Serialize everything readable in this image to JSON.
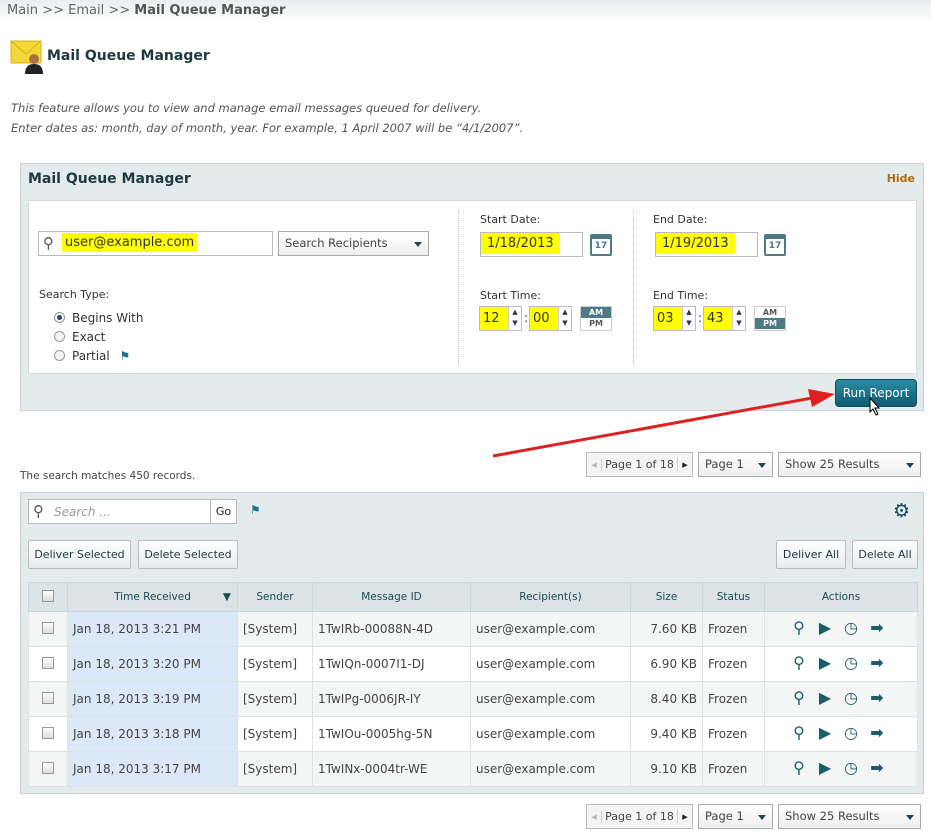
{
  "breadcrumb": {
    "items": [
      "Main",
      ">>",
      "Email",
      ">>"
    ],
    "current": "Mail Queue Manager"
  },
  "page": {
    "title": "Mail Queue Manager",
    "desc1": "This feature allows you to view and manage email messages queued for delivery.",
    "desc2": "Enter dates as: month, day of month, year. For example, 1 April 2007 will be “4/1/2007”."
  },
  "filter": {
    "title": "Mail Queue Manager",
    "hide": "Hide",
    "search_value": "user@example.com",
    "search_field": "Search Recipients",
    "search_type_label": "Search Type:",
    "search_types": [
      "Begins With",
      "Exact",
      "Partial"
    ],
    "search_type_selected": "Begins With",
    "start_date_label": "Start Date:",
    "start_date": "1/18/2013",
    "end_date_label": "End Date:",
    "end_date": "1/19/2013",
    "calendar_day": "17",
    "start_time_label": "Start Time:",
    "start_hour": "12",
    "start_min": "00",
    "start_ampm": "AM",
    "end_time_label": "End Time:",
    "end_hour": "03",
    "end_min": "43",
    "end_ampm": "PM",
    "am": "AM",
    "pm": "PM",
    "run": "Run Report"
  },
  "results": {
    "summary": "The search matches 450 records.",
    "pager": "Page 1 of 18",
    "page_select": "Page 1",
    "show_select": "Show 25 Results",
    "search_placeholder": "Search ...",
    "go": "Go",
    "deliver_selected": "Deliver Selected",
    "delete_selected": "Delete Selected",
    "deliver_all": "Deliver All",
    "delete_all": "Delete All",
    "columns": [
      "Time Received",
      "Sender",
      "Message ID",
      "Recipient(s)",
      "Size",
      "Status",
      "Actions"
    ],
    "rows": [
      {
        "time": "Jan 18, 2013 3:21 PM",
        "sender": "[System]",
        "id": "1TwIRb-00088N-4D",
        "recipient": "user@example.com",
        "size": "7.60 KB",
        "status": "Frozen"
      },
      {
        "time": "Jan 18, 2013 3:20 PM",
        "sender": "[System]",
        "id": "1TwIQn-0007I1-DJ",
        "recipient": "user@example.com",
        "size": "6.90 KB",
        "status": "Frozen"
      },
      {
        "time": "Jan 18, 2013 3:19 PM",
        "sender": "[System]",
        "id": "1TwIPg-0006JR-IY",
        "recipient": "user@example.com",
        "size": "8.40 KB",
        "status": "Frozen"
      },
      {
        "time": "Jan 18, 2013 3:18 PM",
        "sender": "[System]",
        "id": "1TwIOu-0005hg-5N",
        "recipient": "user@example.com",
        "size": "9.40 KB",
        "status": "Frozen"
      },
      {
        "time": "Jan 18, 2013 3:17 PM",
        "sender": "[System]",
        "id": "1TwINx-0004tr-WE",
        "recipient": "user@example.com",
        "size": "9.10 KB",
        "status": "Frozen"
      }
    ]
  },
  "colors": {
    "accent": "#0f5c71",
    "highlight": "#ffff00",
    "arrow": "#e02020"
  }
}
